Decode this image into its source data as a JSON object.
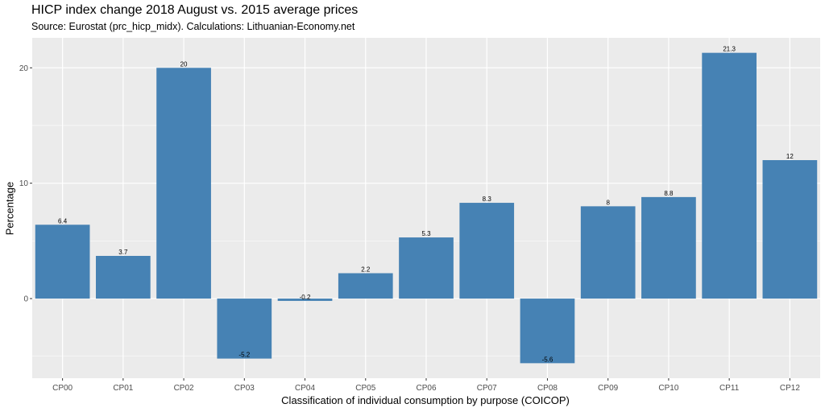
{
  "chart_data": {
    "type": "bar",
    "title": "HICP index change 2018 August vs. 2015 average prices",
    "subtitle": "Source: Eurostat (prc_hicp_midx). Calculations: Lithuanian-Economy.net",
    "xlabel": "Classification of individual consumption by purpose (COICOP)",
    "ylabel": "Percentage",
    "categories": [
      "CP00",
      "CP01",
      "CP02",
      "CP03",
      "CP04",
      "CP05",
      "CP06",
      "CP07",
      "CP08",
      "CP09",
      "CP10",
      "CP11",
      "CP12"
    ],
    "values": [
      6.4,
      3.7,
      20,
      -5.2,
      -0.2,
      2.2,
      5.3,
      8.3,
      -5.6,
      8,
      8.8,
      21.3,
      12
    ],
    "data_labels": [
      "6.4",
      "3.7",
      "20",
      "-5.2",
      "-0.2",
      "2.2",
      "5.3",
      "8.3",
      "-5.6",
      "8",
      "8.8",
      "21.3",
      "12"
    ],
    "ylim": [
      -6.9,
      22.6
    ],
    "yticks": [
      0,
      10,
      20
    ],
    "ytick_labels": [
      "0",
      "10",
      "20"
    ],
    "grid": true,
    "legend": "none",
    "colors": {
      "bar": "#4682b4",
      "panel": "#ebebeb",
      "grid": "#ffffff"
    }
  }
}
